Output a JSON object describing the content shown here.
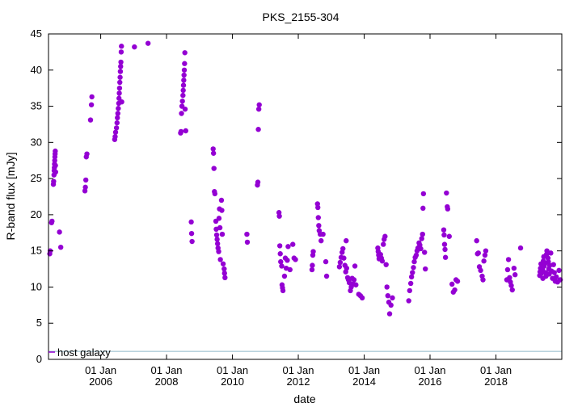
{
  "chart_data": {
    "type": "scatter",
    "title": "PKS_2155-304",
    "xlabel": "date",
    "ylabel": "R-band flux [mJy]",
    "xlim": [
      "2004-06-01",
      "2020-01-01"
    ],
    "ylim": [
      0,
      45
    ],
    "grid": false,
    "legend_position": "bottom-left",
    "x_ticks": [
      {
        "date": "2006-01-01",
        "line1": "01 Jan",
        "line2": "2006"
      },
      {
        "date": "2008-01-01",
        "line1": "01 Jan",
        "line2": "2008"
      },
      {
        "date": "2010-01-01",
        "line1": "01 Jan",
        "line2": "2010"
      },
      {
        "date": "2012-01-01",
        "line1": "01 Jan",
        "line2": "2012"
      },
      {
        "date": "2014-01-01",
        "line1": "01 Jan",
        "line2": "2014"
      },
      {
        "date": "2016-01-01",
        "line1": "01 Jan",
        "line2": "2016"
      },
      {
        "date": "2018-01-01",
        "line1": "01 Jan",
        "line2": "2018"
      }
    ],
    "y_ticks": [
      "0",
      "5",
      "10",
      "15",
      "20",
      "25",
      "30",
      "35",
      "40",
      "45"
    ],
    "colors": {
      "points": "#9400d3",
      "host_line": "#8fb8c9"
    },
    "host_galaxy": {
      "label": "host galaxy",
      "value": 1.1
    },
    "series": [
      {
        "points": [
          [
            "2004-06-15",
            14.6
          ],
          [
            "2004-06-20",
            15.0
          ],
          [
            "2004-07-05",
            18.9
          ],
          [
            "2004-07-10",
            19.1
          ],
          [
            "2004-07-25",
            24.2
          ],
          [
            "2004-07-28",
            24.6
          ],
          [
            "2004-08-01",
            25.5
          ],
          [
            "2004-08-03",
            26.1
          ],
          [
            "2004-08-05",
            26.5
          ],
          [
            "2004-08-07",
            27.0
          ],
          [
            "2004-08-09",
            27.5
          ],
          [
            "2004-08-11",
            28.0
          ],
          [
            "2004-08-13",
            28.4
          ],
          [
            "2004-08-15",
            28.8
          ],
          [
            "2004-08-17",
            26.8
          ],
          [
            "2004-08-19",
            25.9
          ],
          [
            "2004-10-01",
            17.6
          ],
          [
            "2004-10-15",
            15.5
          ],
          [
            "2005-07-10",
            23.3
          ],
          [
            "2005-07-15",
            23.8
          ],
          [
            "2005-07-20",
            24.8
          ],
          [
            "2005-07-25",
            28.0
          ],
          [
            "2005-08-01",
            28.4
          ],
          [
            "2005-09-10",
            33.1
          ],
          [
            "2005-09-20",
            35.2
          ],
          [
            "2005-09-25",
            36.3
          ],
          [
            "2006-06-05",
            30.4
          ],
          [
            "2006-06-10",
            30.8
          ],
          [
            "2006-06-15",
            31.4
          ],
          [
            "2006-06-25",
            32.0
          ],
          [
            "2006-07-01",
            32.7
          ],
          [
            "2006-07-05",
            33.4
          ],
          [
            "2006-07-10",
            34.0
          ],
          [
            "2006-07-15",
            34.7
          ],
          [
            "2006-07-20",
            35.4
          ],
          [
            "2006-07-23",
            36.1
          ],
          [
            "2006-07-26",
            36.8
          ],
          [
            "2006-07-29",
            37.5
          ],
          [
            "2006-08-01",
            38.3
          ],
          [
            "2006-08-04",
            39.0
          ],
          [
            "2006-08-07",
            39.8
          ],
          [
            "2006-08-10",
            40.5
          ],
          [
            "2006-08-13",
            41.1
          ],
          [
            "2006-08-16",
            42.5
          ],
          [
            "2006-08-19",
            43.3
          ],
          [
            "2006-08-22",
            35.6
          ],
          [
            "2007-01-10",
            43.2
          ],
          [
            "2007-06-10",
            43.7
          ],
          [
            "2008-06-05",
            31.3
          ],
          [
            "2008-06-10",
            31.5
          ],
          [
            "2008-06-15",
            34.0
          ],
          [
            "2008-06-20",
            35.0
          ],
          [
            "2008-06-25",
            35.7
          ],
          [
            "2008-07-01",
            36.5
          ],
          [
            "2008-07-04",
            37.2
          ],
          [
            "2008-07-07",
            37.9
          ],
          [
            "2008-07-10",
            38.6
          ],
          [
            "2008-07-13",
            39.3
          ],
          [
            "2008-07-16",
            40.0
          ],
          [
            "2008-07-19",
            40.9
          ],
          [
            "2008-07-22",
            42.4
          ],
          [
            "2008-07-25",
            34.6
          ],
          [
            "2008-08-01",
            31.6
          ],
          [
            "2008-10-01",
            19.0
          ],
          [
            "2008-10-05",
            17.4
          ],
          [
            "2008-10-10",
            16.3
          ],
          [
            "2009-06-01",
            29.1
          ],
          [
            "2009-06-05",
            28.5
          ],
          [
            "2009-06-10",
            26.4
          ],
          [
            "2009-06-15",
            23.2
          ],
          [
            "2009-06-20",
            22.9
          ],
          [
            "2009-07-01",
            19.1
          ],
          [
            "2009-07-05",
            18.0
          ],
          [
            "2009-07-10",
            17.2
          ],
          [
            "2009-07-15",
            16.6
          ],
          [
            "2009-07-20",
            16.0
          ],
          [
            "2009-07-25",
            15.4
          ],
          [
            "2009-08-01",
            14.9
          ],
          [
            "2009-08-05",
            19.5
          ],
          [
            "2009-08-10",
            20.8
          ],
          [
            "2009-08-15",
            18.2
          ],
          [
            "2009-08-20",
            13.8
          ],
          [
            "2009-09-01",
            22.0
          ],
          [
            "2009-09-05",
            20.6
          ],
          [
            "2009-09-10",
            17.3
          ],
          [
            "2009-09-20",
            13.2
          ],
          [
            "2009-10-01",
            12.5
          ],
          [
            "2009-10-05",
            11.9
          ],
          [
            "2009-10-10",
            11.3
          ],
          [
            "2010-06-10",
            17.3
          ],
          [
            "2010-06-15",
            16.2
          ],
          [
            "2010-10-05",
            24.1
          ],
          [
            "2010-10-10",
            24.5
          ],
          [
            "2010-10-15",
            31.8
          ],
          [
            "2010-10-20",
            34.6
          ],
          [
            "2010-10-25",
            35.2
          ],
          [
            "2011-06-01",
            20.3
          ],
          [
            "2011-06-05",
            19.8
          ],
          [
            "2011-06-10",
            15.7
          ],
          [
            "2011-06-15",
            14.6
          ],
          [
            "2011-06-20",
            13.5
          ],
          [
            "2011-07-01",
            12.9
          ],
          [
            "2011-07-05",
            10.3
          ],
          [
            "2011-07-10",
            9.9
          ],
          [
            "2011-07-15",
            9.5
          ],
          [
            "2011-08-01",
            11.5
          ],
          [
            "2011-08-10",
            14.0
          ],
          [
            "2011-08-20",
            12.6
          ],
          [
            "2011-09-01",
            13.7
          ],
          [
            "2011-09-10",
            15.6
          ],
          [
            "2011-10-01",
            12.4
          ],
          [
            "2011-11-01",
            15.9
          ],
          [
            "2011-11-15",
            14.0
          ],
          [
            "2011-12-01",
            13.8
          ],
          [
            "2012-06-01",
            12.4
          ],
          [
            "2012-06-05",
            13.0
          ],
          [
            "2012-06-10",
            14.4
          ],
          [
            "2012-06-15",
            14.9
          ],
          [
            "2012-08-01",
            21.5
          ],
          [
            "2012-08-05",
            21.0
          ],
          [
            "2012-08-10",
            19.6
          ],
          [
            "2012-08-15",
            18.5
          ],
          [
            "2012-08-20",
            17.8
          ],
          [
            "2012-09-01",
            17.3
          ],
          [
            "2012-09-10",
            16.4
          ],
          [
            "2012-10-01",
            17.3
          ],
          [
            "2012-11-01",
            13.5
          ],
          [
            "2012-11-10",
            11.5
          ],
          [
            "2013-04-01",
            12.8
          ],
          [
            "2013-04-10",
            13.4
          ],
          [
            "2013-04-20",
            14.1
          ],
          [
            "2013-05-01",
            14.8
          ],
          [
            "2013-05-10",
            15.3
          ],
          [
            "2013-05-20",
            14.0
          ],
          [
            "2013-06-01",
            13.0
          ],
          [
            "2013-06-10",
            12.1
          ],
          [
            "2013-06-15",
            16.4
          ],
          [
            "2013-06-20",
            12.6
          ],
          [
            "2013-07-01",
            11.3
          ],
          [
            "2013-07-10",
            11.0
          ],
          [
            "2013-07-20",
            10.6
          ],
          [
            "2013-08-01",
            9.5
          ],
          [
            "2013-08-10",
            10.0
          ],
          [
            "2013-08-20",
            11.2
          ],
          [
            "2013-09-01",
            10.4
          ],
          [
            "2013-09-10",
            11.0
          ],
          [
            "2013-09-20",
            12.9
          ],
          [
            "2013-10-01",
            10.3
          ],
          [
            "2013-11-01",
            9.0
          ],
          [
            "2013-11-20",
            8.8
          ],
          [
            "2013-12-10",
            8.5
          ],
          [
            "2014-06-01",
            15.4
          ],
          [
            "2014-06-05",
            14.9
          ],
          [
            "2014-06-10",
            14.4
          ],
          [
            "2014-06-15",
            13.9
          ],
          [
            "2014-06-20",
            14.1
          ],
          [
            "2014-07-01",
            14.5
          ],
          [
            "2014-07-10",
            14.0
          ],
          [
            "2014-07-20",
            13.6
          ],
          [
            "2014-08-01",
            15.9
          ],
          [
            "2014-08-10",
            16.6
          ],
          [
            "2014-08-20",
            17.0
          ],
          [
            "2014-09-01",
            13.1
          ],
          [
            "2014-09-10",
            10.0
          ],
          [
            "2014-09-20",
            8.8
          ],
          [
            "2014-10-01",
            7.9
          ],
          [
            "2014-10-10",
            6.3
          ],
          [
            "2014-10-25",
            7.5
          ],
          [
            "2014-11-10",
            8.5
          ],
          [
            "2015-05-10",
            8.1
          ],
          [
            "2015-05-20",
            9.5
          ],
          [
            "2015-06-01",
            10.5
          ],
          [
            "2015-06-10",
            11.4
          ],
          [
            "2015-06-20",
            12.0
          ],
          [
            "2015-07-01",
            12.7
          ],
          [
            "2015-07-10",
            13.5
          ],
          [
            "2015-07-20",
            14.1
          ],
          [
            "2015-08-01",
            14.4
          ],
          [
            "2015-08-10",
            15.0
          ],
          [
            "2015-08-20",
            15.4
          ],
          [
            "2015-09-01",
            16.1
          ],
          [
            "2015-09-10",
            15.8
          ],
          [
            "2015-09-20",
            15.3
          ],
          [
            "2015-10-01",
            16.7
          ],
          [
            "2015-10-10",
            17.3
          ],
          [
            "2015-10-15",
            20.9
          ],
          [
            "2015-10-20",
            22.9
          ],
          [
            "2015-11-01",
            14.8
          ],
          [
            "2015-11-10",
            12.5
          ],
          [
            "2016-06-01",
            17.9
          ],
          [
            "2016-06-05",
            17.2
          ],
          [
            "2016-06-10",
            15.9
          ],
          [
            "2016-06-15",
            15.2
          ],
          [
            "2016-06-20",
            14.1
          ],
          [
            "2016-07-01",
            23.0
          ],
          [
            "2016-07-10",
            21.1
          ],
          [
            "2016-07-15",
            20.8
          ],
          [
            "2016-08-01",
            17.0
          ],
          [
            "2016-09-01",
            10.4
          ],
          [
            "2016-09-15",
            9.3
          ],
          [
            "2016-10-01",
            9.6
          ],
          [
            "2016-10-15",
            11.0
          ],
          [
            "2016-11-01",
            10.8
          ],
          [
            "2017-06-01",
            16.4
          ],
          [
            "2017-06-10",
            14.6
          ],
          [
            "2017-06-20",
            14.7
          ],
          [
            "2017-07-01",
            12.8
          ],
          [
            "2017-07-15",
            12.3
          ],
          [
            "2017-08-01",
            11.5
          ],
          [
            "2017-08-10",
            11.0
          ],
          [
            "2017-08-20",
            13.6
          ],
          [
            "2017-09-01",
            14.4
          ],
          [
            "2017-09-10",
            15.0
          ],
          [
            "2018-05-01",
            11.0
          ],
          [
            "2018-05-10",
            12.4
          ],
          [
            "2018-05-20",
            13.8
          ],
          [
            "2018-06-01",
            11.3
          ],
          [
            "2018-06-10",
            10.7
          ],
          [
            "2018-06-20",
            10.2
          ],
          [
            "2018-07-01",
            9.6
          ],
          [
            "2018-07-20",
            12.6
          ],
          [
            "2018-08-01",
            11.7
          ],
          [
            "2018-10-01",
            15.4
          ],
          [
            "2019-05-01",
            11.6
          ],
          [
            "2019-05-05",
            12.1
          ],
          [
            "2019-05-10",
            12.6
          ],
          [
            "2019-05-15",
            13.2
          ],
          [
            "2019-05-20",
            11.9
          ],
          [
            "2019-06-01",
            12.4
          ],
          [
            "2019-06-05",
            11.2
          ],
          [
            "2019-06-10",
            13.6
          ],
          [
            "2019-06-15",
            14.2
          ],
          [
            "2019-06-20",
            12.9
          ],
          [
            "2019-07-01",
            13.3
          ],
          [
            "2019-07-05",
            12.0
          ],
          [
            "2019-07-10",
            11.5
          ],
          [
            "2019-07-15",
            14.5
          ],
          [
            "2019-07-20",
            15.0
          ],
          [
            "2019-08-01",
            14.0
          ],
          [
            "2019-08-05",
            13.5
          ],
          [
            "2019-08-10",
            12.5
          ],
          [
            "2019-08-15",
            11.8
          ],
          [
            "2019-08-20",
            13.0
          ],
          [
            "2019-09-01",
            14.7
          ],
          [
            "2019-09-10",
            12.2
          ],
          [
            "2019-09-20",
            11.2
          ],
          [
            "2019-10-01",
            13.1
          ],
          [
            "2019-10-10",
            12.0
          ],
          [
            "2019-10-20",
            10.8
          ],
          [
            "2019-11-01",
            11.4
          ],
          [
            "2019-11-15",
            10.7
          ],
          [
            "2019-12-01",
            12.3
          ],
          [
            "2019-12-15",
            11.0
          ]
        ]
      }
    ]
  }
}
